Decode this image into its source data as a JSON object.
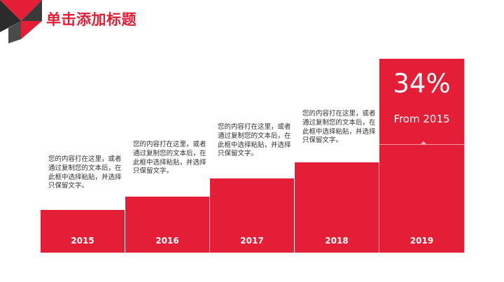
{
  "title": "单击添加标题",
  "accent_color": "#e31e36",
  "steps": [
    {
      "year": "2015",
      "text": "您的内容打在这里，或者通过复制您的文本后，在此框中选择粘贴，并选择只保留文字。"
    },
    {
      "year": "2016",
      "text": "您的内容打在这里，或者通过复制您的文本后，在此框中选择粘贴，并选择只保留文字。"
    },
    {
      "year": "2017",
      "text": "您的内容打在这里，或者通过复制您的文本后，在此框中选择粘贴，并选择只保留文字。"
    },
    {
      "year": "2018",
      "text": "您的内容打在这里，或者通过复制您的文本后，在此框中选择粘贴，并选择只保留文字。"
    },
    {
      "year": "2019",
      "percent": "34%",
      "from": "From 2015"
    }
  ]
}
